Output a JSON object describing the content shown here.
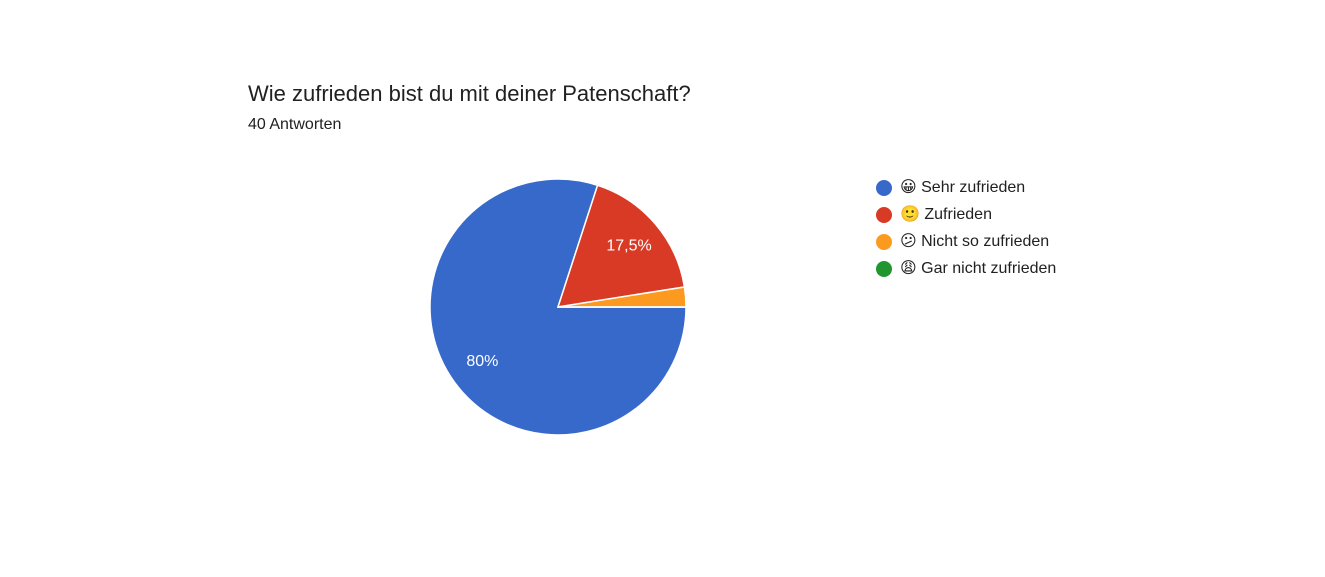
{
  "chart_data": {
    "type": "pie",
    "title": "Wie zufrieden bist du mit deiner Patenschaft?",
    "subtitle": "40 Antworten",
    "categories": [
      "😀 Sehr zufrieden",
      "🙂 Zufrieden",
      "😕 Nicht so zufrieden",
      "😩 Gar nicht zufrieden"
    ],
    "values": [
      80,
      17.5,
      2.5,
      0
    ],
    "value_labels": [
      "80%",
      "17,5%",
      null,
      null
    ],
    "colors": [
      "#3769cb",
      "#d93a25",
      "#fb9a1f",
      "#21962f"
    ],
    "legend": "right"
  }
}
